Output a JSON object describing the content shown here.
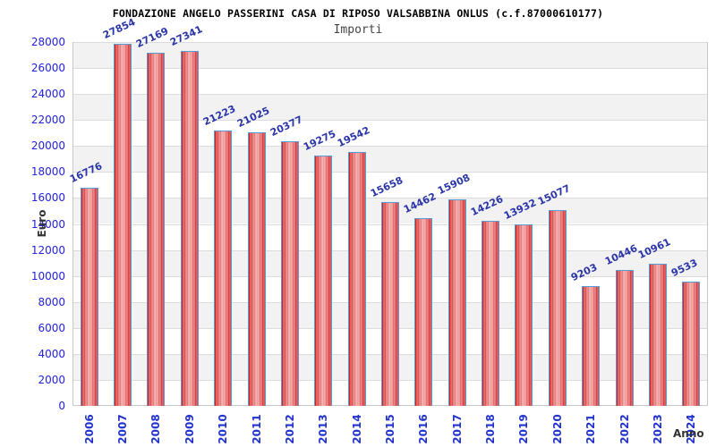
{
  "chart_data": {
    "type": "bar",
    "title": "FONDAZIONE ANGELO PASSERINI CASA DI RIPOSO VALSABBINA ONLUS (c.f.87000610177)",
    "subtitle": "Importi",
    "xlabel": "Anno",
    "ylabel": "Euro",
    "categories": [
      "2006",
      "2007",
      "2008",
      "2009",
      "2010",
      "2011",
      "2012",
      "2013",
      "2014",
      "2015",
      "2016",
      "2017",
      "2018",
      "2019",
      "2020",
      "2021",
      "2022",
      "2023",
      "2024"
    ],
    "values": [
      16776,
      27854,
      27169,
      27341,
      21223,
      21025,
      20377,
      19275,
      19542,
      15658,
      14462,
      15908,
      14226,
      13932,
      15077,
      9203,
      10446,
      10961,
      9533
    ],
    "ylim": [
      0,
      28000
    ],
    "yticks": [
      0,
      2000,
      4000,
      6000,
      8000,
      10000,
      12000,
      14000,
      16000,
      18000,
      20000,
      22000,
      24000,
      26000,
      28000
    ],
    "grid": "horizontal-bands",
    "legend": "none",
    "colors": {
      "bar_fill": "#cf1d1d",
      "bar_highlight": "#f3a4a4",
      "bar_border": "#5b9bd5",
      "value_label": "#2a35a8",
      "ytick_label": "#2222dd",
      "xtick_label": "#2233cc",
      "band": "#f2f2f2",
      "gridline": "#dcdcdc",
      "plot_border": "#c9c9c9",
      "axis_title": "#333333",
      "title": "#000000",
      "subtitle": "#444444"
    }
  }
}
